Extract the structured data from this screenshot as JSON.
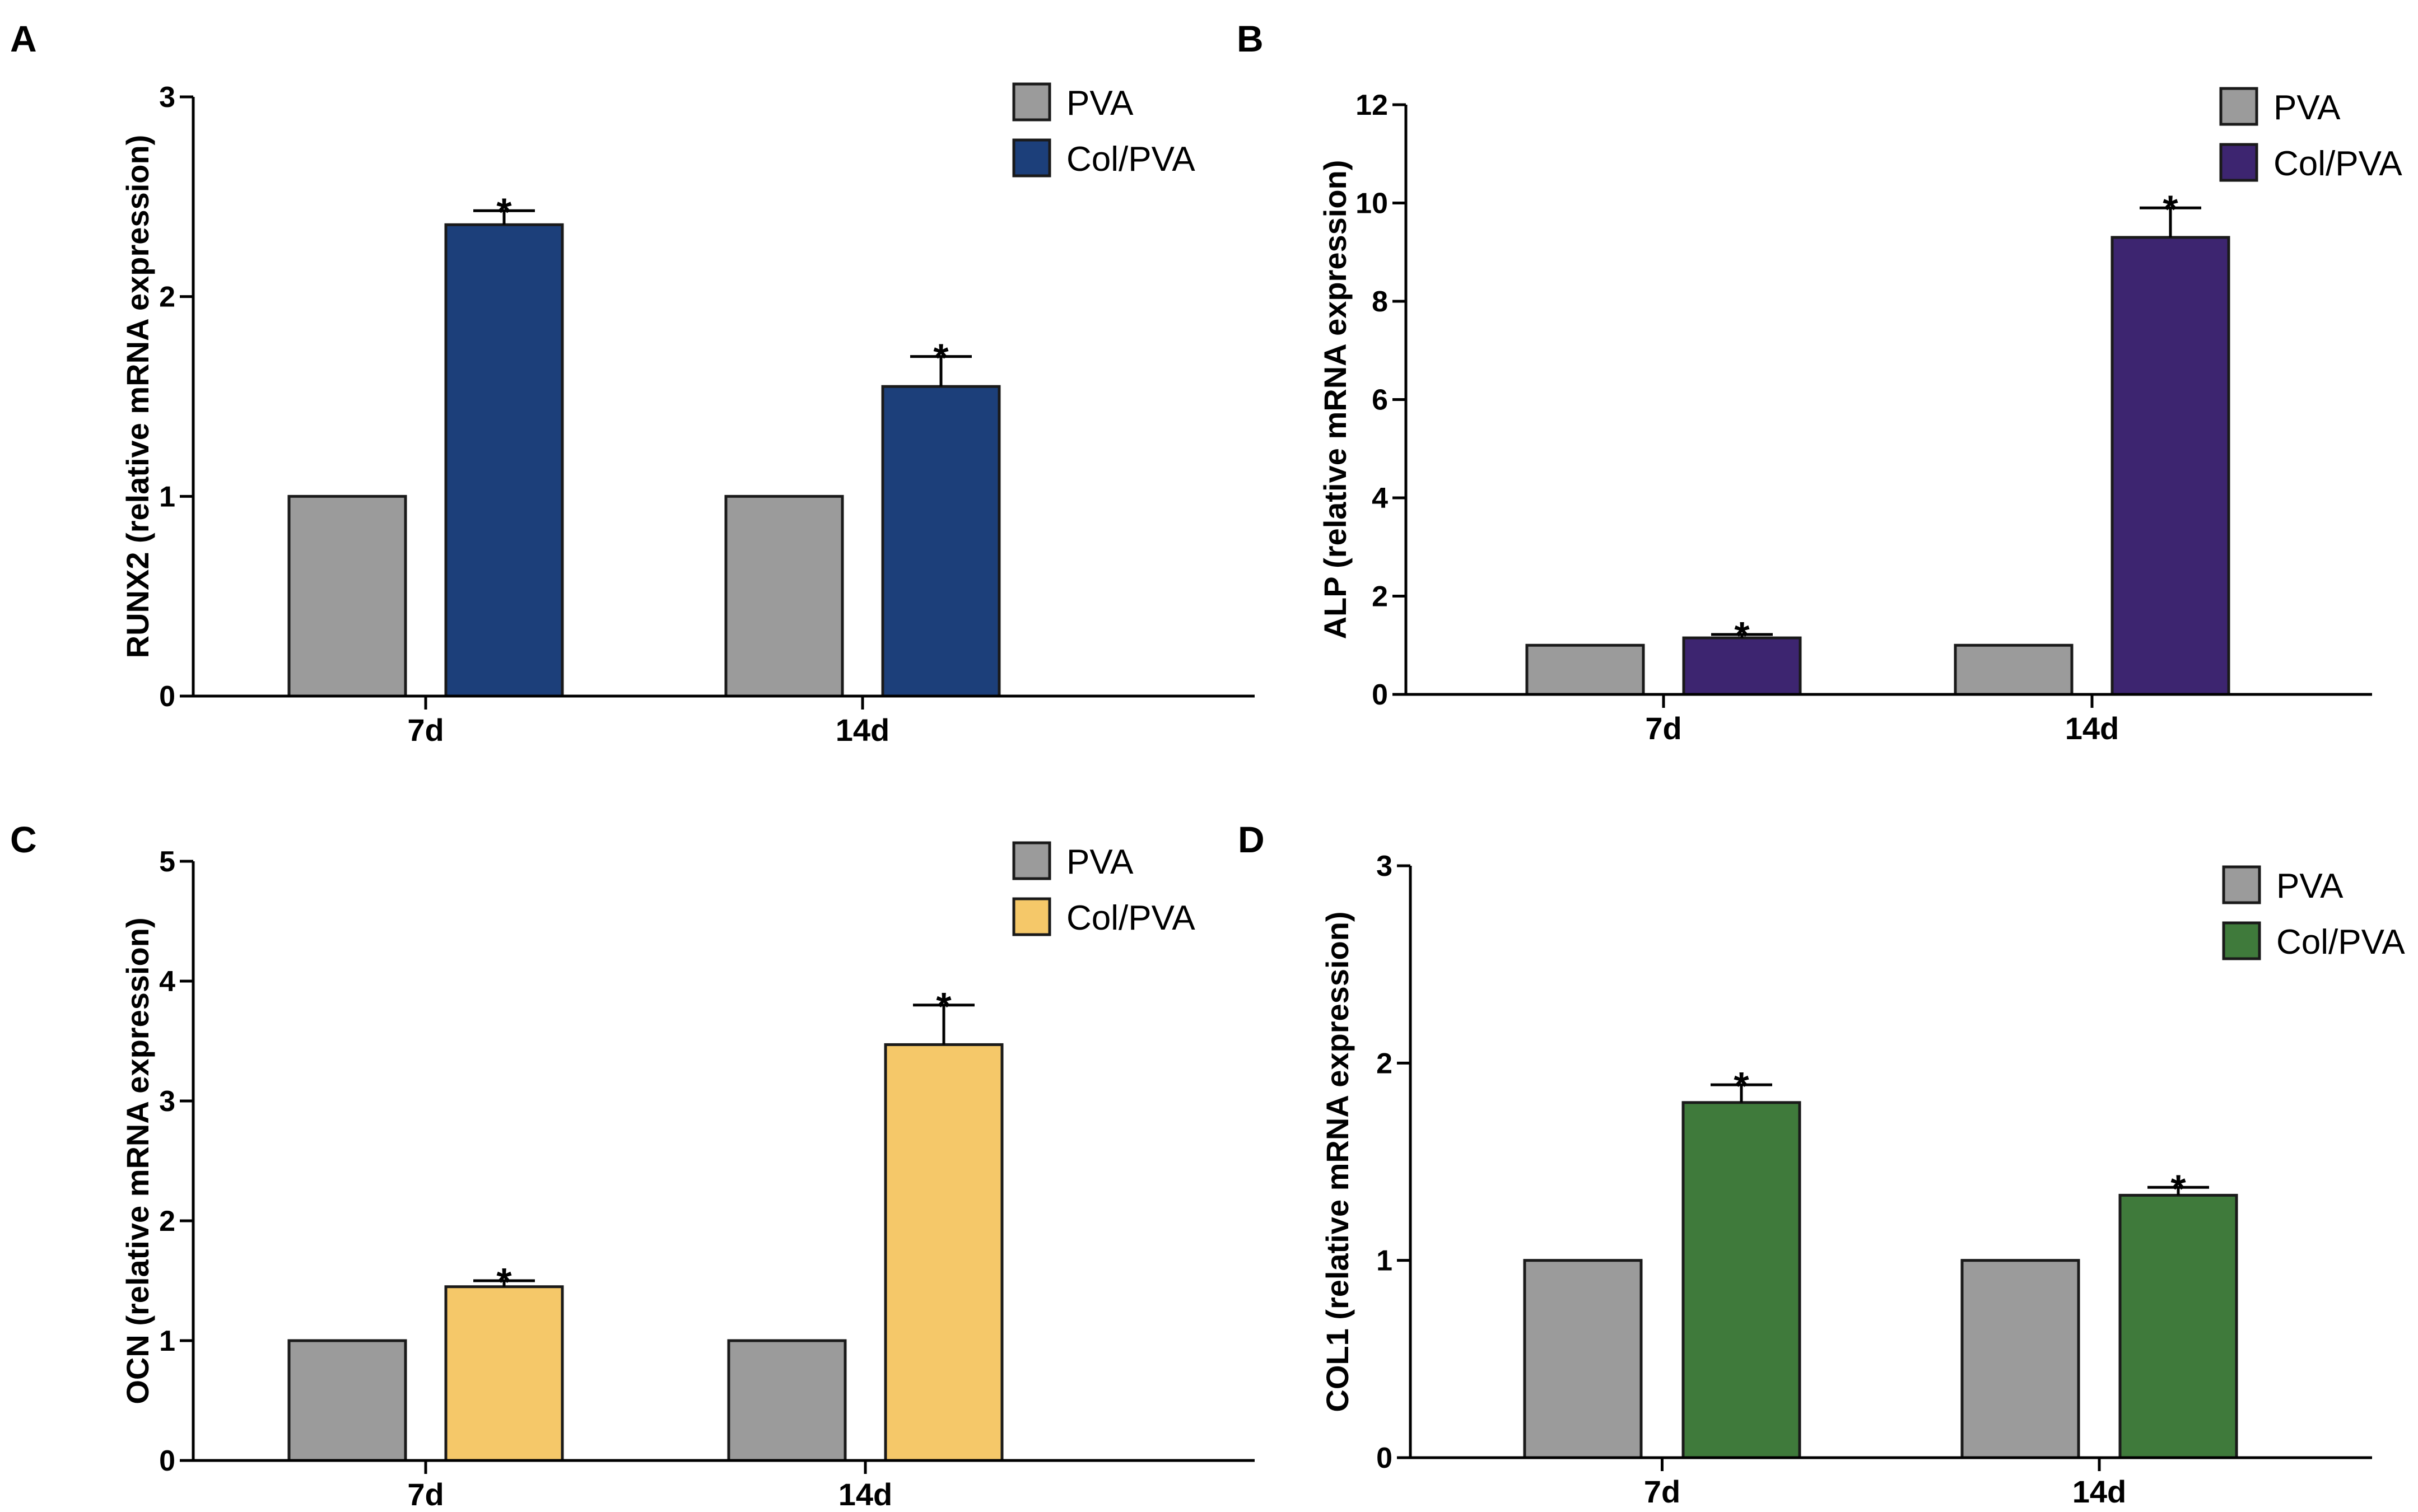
{
  "figure": {
    "colors": {
      "pva": "#9b9b9b",
      "outline": "#1a1a1a",
      "axis": "#000000"
    }
  },
  "chart_data": [
    {
      "type": "bar",
      "panel": "A",
      "ylabel": "RUNX2 (relative mRNA expression)",
      "categories": [
        "7d",
        "14d"
      ],
      "ylim": [
        0,
        3
      ],
      "yticks": [
        "0",
        "1",
        "2",
        "3"
      ],
      "series": [
        {
          "name": "PVA",
          "values": [
            1,
            1
          ],
          "errors": [
            0,
            0
          ],
          "color": "#9b9b9b",
          "sig": [
            "",
            ""
          ]
        },
        {
          "name": "Col/PVA",
          "values": [
            2.36,
            1.55
          ],
          "errors": [
            0.07,
            0.15
          ],
          "color": "#1c3f7a",
          "sig": [
            "*",
            "*"
          ]
        }
      ]
    },
    {
      "type": "bar",
      "panel": "B",
      "ylabel": "ALP (relative mRNA expression)",
      "categories": [
        "7d",
        "14d"
      ],
      "ylim": [
        0,
        12
      ],
      "yticks": [
        "0",
        "2",
        "4",
        "6",
        "8",
        "10",
        "12"
      ],
      "series": [
        {
          "name": "PVA",
          "values": [
            1,
            1
          ],
          "errors": [
            0,
            0
          ],
          "color": "#9b9b9b",
          "sig": [
            "",
            ""
          ]
        },
        {
          "name": "Col/PVA",
          "values": [
            1.15,
            9.3
          ],
          "errors": [
            0.07,
            0.6
          ],
          "color": "#3d2570",
          "sig": [
            "*",
            "*"
          ]
        }
      ]
    },
    {
      "type": "bar",
      "panel": "C",
      "ylabel": "OCN (relative mRNA expression)",
      "categories": [
        "7d",
        "14d"
      ],
      "ylim": [
        0,
        5
      ],
      "yticks": [
        "0",
        "1",
        "2",
        "3",
        "4",
        "5"
      ],
      "series": [
        {
          "name": "PVA",
          "values": [
            1,
            1
          ],
          "errors": [
            0,
            0
          ],
          "color": "#9b9b9b",
          "sig": [
            "",
            ""
          ]
        },
        {
          "name": "Col/PVA",
          "values": [
            1.45,
            3.47
          ],
          "errors": [
            0.05,
            0.33
          ],
          "color": "#f5c869",
          "sig": [
            "*",
            "*"
          ]
        }
      ]
    },
    {
      "type": "bar",
      "panel": "D",
      "ylabel": "COL1 (relative mRNA expression)",
      "categories": [
        "7d",
        "14d"
      ],
      "ylim": [
        0,
        3
      ],
      "yticks": [
        "0",
        "1",
        "2",
        "3"
      ],
      "series": [
        {
          "name": "PVA",
          "values": [
            1,
            1
          ],
          "errors": [
            0,
            0
          ],
          "color": "#9b9b9b",
          "sig": [
            "",
            ""
          ]
        },
        {
          "name": "Col/PVA",
          "values": [
            1.8,
            1.33
          ],
          "errors": [
            0.09,
            0.04
          ],
          "color": "#3f7a3b",
          "sig": [
            "*",
            "*"
          ]
        }
      ]
    }
  ]
}
